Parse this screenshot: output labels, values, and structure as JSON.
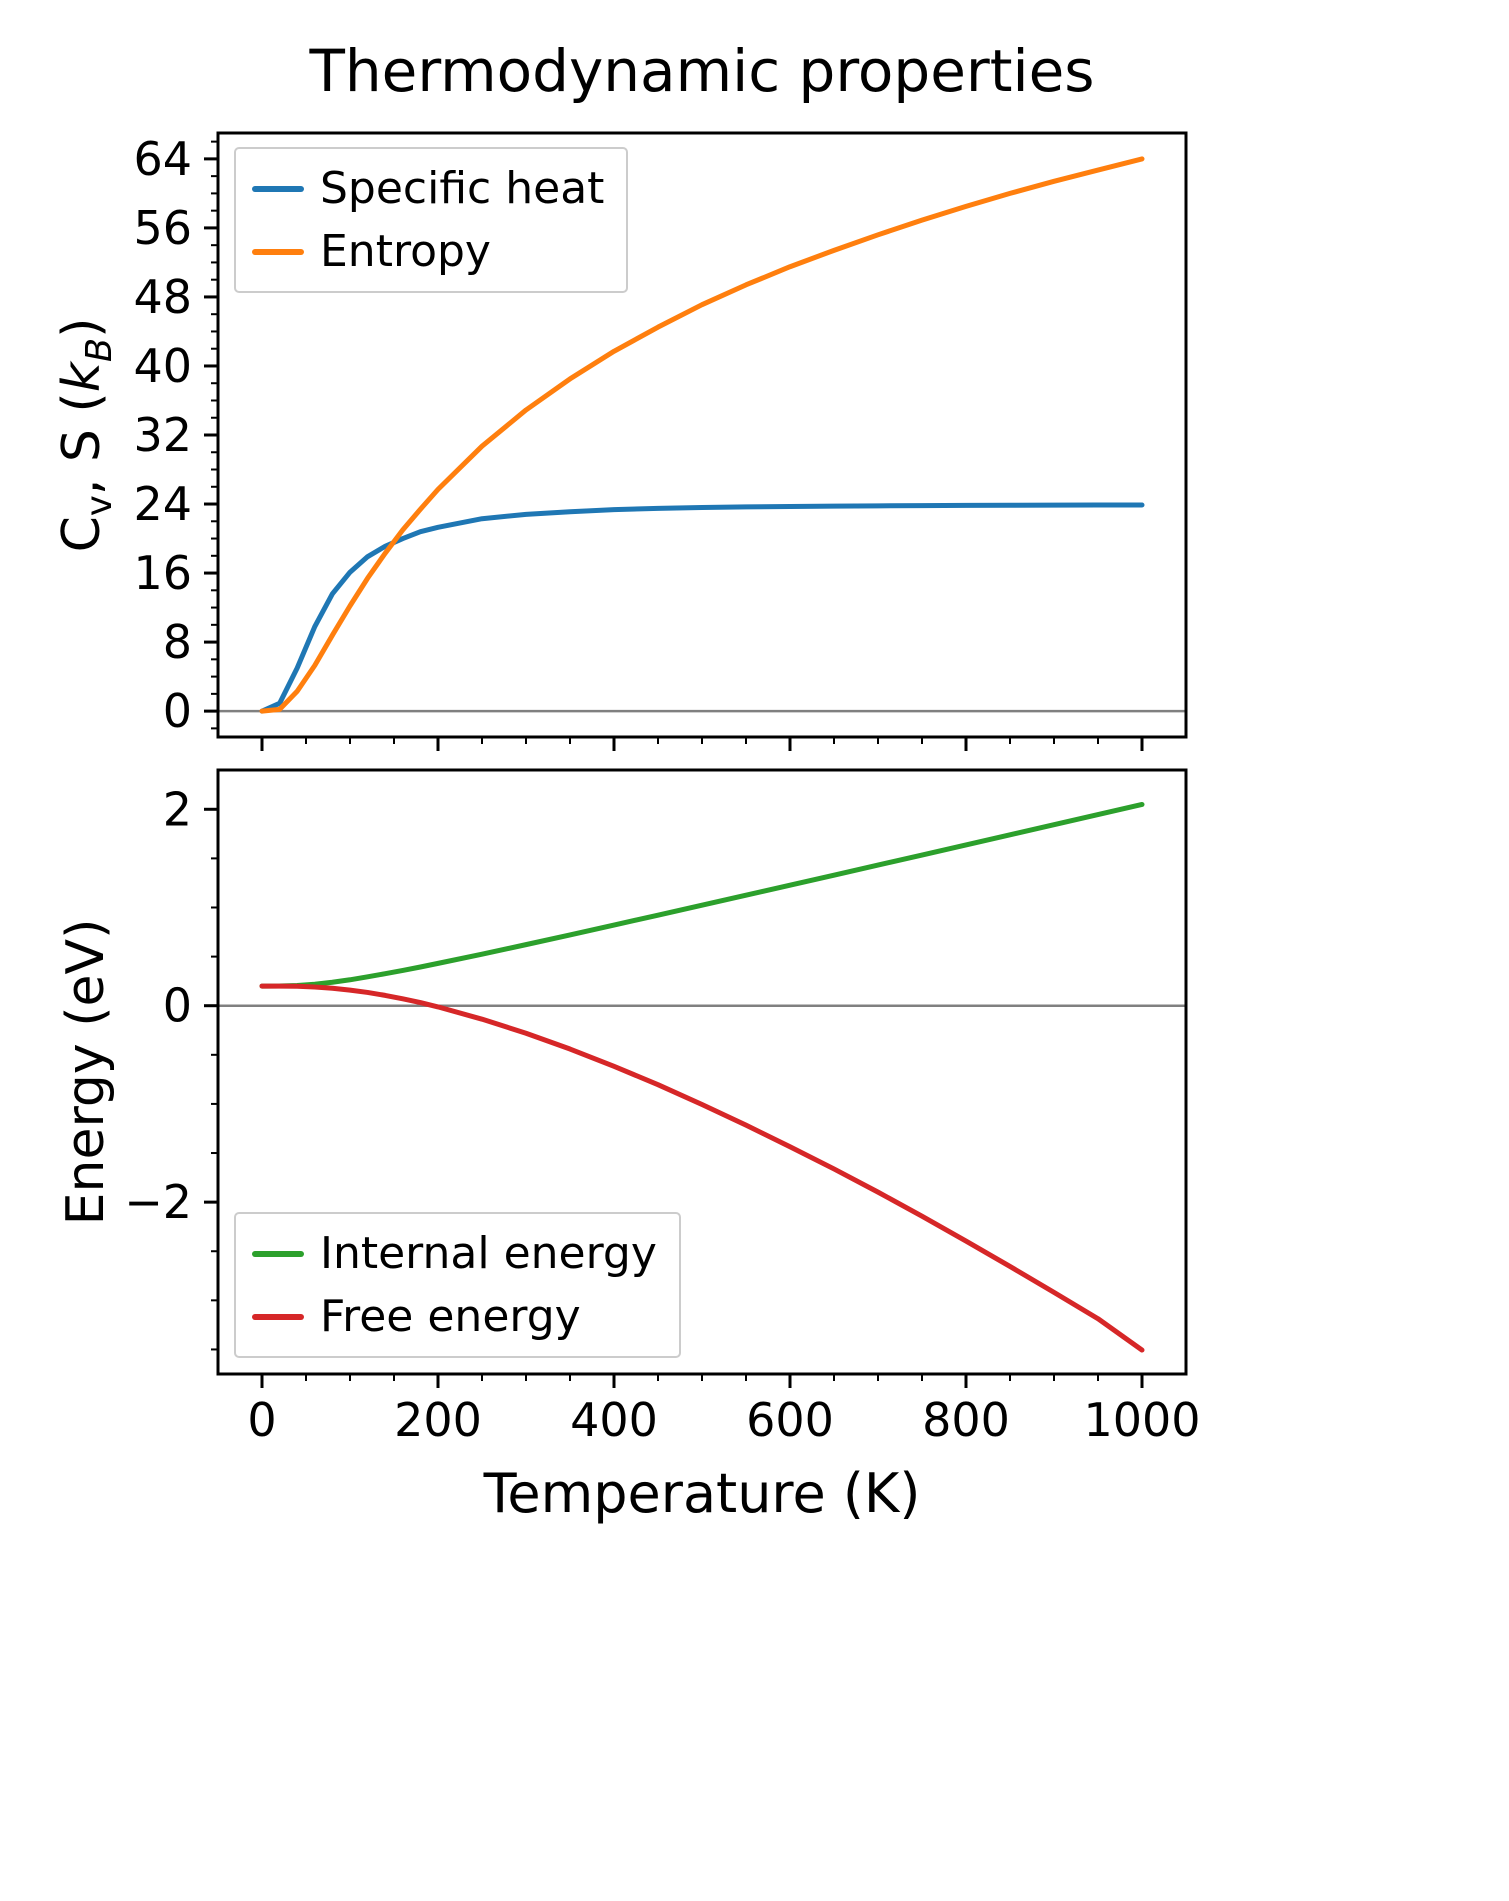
{
  "title": "Thermodynamic properties",
  "colors": {
    "frame": "#000000",
    "zero_line": "#808080",
    "legend_border": "#cccccc"
  },
  "chart_data": [
    {
      "type": "line",
      "title": "Thermodynamic properties",
      "ylabel": "C_v, S (k_B)",
      "ylabel_parts": [
        {
          "text": "C",
          "style": "normal"
        },
        {
          "text": "v",
          "style": "sub"
        },
        {
          "text": ", S (",
          "style": "normal"
        },
        {
          "text": "k",
          "style": "italic"
        },
        {
          "text": "B",
          "style": "subitalic"
        },
        {
          "text": ")",
          "style": "normal"
        }
      ],
      "xlabel": "",
      "xlim": [
        -50,
        1050
      ],
      "ylim": [
        -3,
        67
      ],
      "grid": false,
      "zero_line": true,
      "xminor_step": 50,
      "yminor_step": 2,
      "xticks": [
        {
          "v": 0,
          "label": ""
        },
        {
          "v": 200,
          "label": ""
        },
        {
          "v": 400,
          "label": ""
        },
        {
          "v": 600,
          "label": ""
        },
        {
          "v": 800,
          "label": ""
        },
        {
          "v": 1000,
          "label": ""
        }
      ],
      "yticks": [
        {
          "v": 0,
          "label": "0"
        },
        {
          "v": 8,
          "label": "8"
        },
        {
          "v": 16,
          "label": "16"
        },
        {
          "v": 24,
          "label": "24"
        },
        {
          "v": 32,
          "label": "32"
        },
        {
          "v": 40,
          "label": "40"
        },
        {
          "v": 48,
          "label": "48"
        },
        {
          "v": 56,
          "label": "56"
        },
        {
          "v": 64,
          "label": "64"
        }
      ],
      "legend": {
        "position": "upper-left",
        "entries": [
          "Specific heat",
          "Entropy"
        ]
      },
      "x": [
        0,
        20,
        40,
        60,
        80,
        100,
        120,
        140,
        160,
        180,
        200,
        250,
        300,
        350,
        400,
        450,
        500,
        550,
        600,
        650,
        700,
        750,
        800,
        850,
        900,
        950,
        1000
      ],
      "series": [
        {
          "name": "Specific heat",
          "color": "#1f77b4",
          "values": [
            0,
            0.9,
            5.0,
            9.8,
            13.6,
            16.1,
            17.9,
            19.1,
            20.0,
            20.8,
            21.3,
            22.3,
            22.8,
            23.1,
            23.35,
            23.5,
            23.6,
            23.67,
            23.72,
            23.76,
            23.79,
            23.82,
            23.84,
            23.86,
            23.87,
            23.88,
            23.89
          ]
        },
        {
          "name": "Entropy",
          "color": "#ff7f0e",
          "values": [
            0,
            0.2,
            2.3,
            5.3,
            8.8,
            12.2,
            15.4,
            18.3,
            21.0,
            23.4,
            25.7,
            30.7,
            34.9,
            38.5,
            41.7,
            44.5,
            47.1,
            49.4,
            51.5,
            53.4,
            55.2,
            56.9,
            58.5,
            60.0,
            61.4,
            62.7,
            64.0
          ]
        }
      ]
    },
    {
      "type": "line",
      "title": "",
      "ylabel": "Energy (eV)",
      "ylabel_parts": [
        {
          "text": "Energy (eV)",
          "style": "normal"
        }
      ],
      "xlabel": "Temperature (K)",
      "xlim": [
        -50,
        1050
      ],
      "ylim": [
        -3.75,
        2.4
      ],
      "grid": false,
      "zero_line": true,
      "xminor_step": 50,
      "yminor_step": 0.5,
      "xticks": [
        {
          "v": 0,
          "label": "0"
        },
        {
          "v": 200,
          "label": "200"
        },
        {
          "v": 400,
          "label": "400"
        },
        {
          "v": 600,
          "label": "600"
        },
        {
          "v": 800,
          "label": "800"
        },
        {
          "v": 1000,
          "label": "1000"
        }
      ],
      "yticks": [
        {
          "v": -2,
          "label": "−2"
        },
        {
          "v": 0,
          "label": "0"
        },
        {
          "v": 2,
          "label": "2"
        }
      ],
      "legend": {
        "position": "lower-left",
        "entries": [
          "Internal energy",
          "Free energy"
        ]
      },
      "x": [
        0,
        20,
        40,
        60,
        80,
        100,
        120,
        140,
        160,
        180,
        200,
        250,
        300,
        350,
        400,
        450,
        500,
        550,
        600,
        650,
        700,
        750,
        800,
        850,
        900,
        950,
        1000
      ],
      "series": [
        {
          "name": "Internal energy",
          "color": "#2ca02c",
          "values": [
            0.2,
            0.201,
            0.206,
            0.219,
            0.239,
            0.264,
            0.294,
            0.326,
            0.359,
            0.394,
            0.431,
            0.525,
            0.622,
            0.721,
            0.821,
            0.922,
            1.023,
            1.125,
            1.227,
            1.329,
            1.432,
            1.534,
            1.637,
            1.74,
            1.843,
            1.946,
            2.049
          ]
        },
        {
          "name": "Free energy",
          "color": "#d62728",
          "values": [
            0.2,
            0.2,
            0.198,
            0.191,
            0.178,
            0.159,
            0.135,
            0.105,
            0.07,
            0.032,
            -0.012,
            -0.137,
            -0.28,
            -0.441,
            -0.617,
            -0.804,
            -1.006,
            -1.216,
            -1.436,
            -1.662,
            -1.898,
            -2.143,
            -2.396,
            -2.655,
            -2.919,
            -3.187,
            -3.506
          ]
        }
      ]
    }
  ]
}
